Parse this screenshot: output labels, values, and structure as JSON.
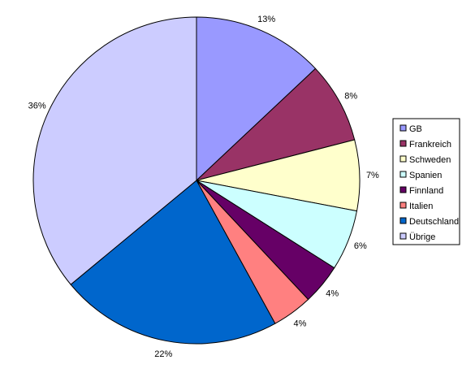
{
  "chart_data": {
    "type": "pie",
    "title": "",
    "start_angle_deg": 0,
    "direction": "clockwise",
    "legend_position": "right",
    "slices": [
      {
        "name": "GB",
        "value": 13,
        "label": "13%",
        "color": "#9999ff"
      },
      {
        "name": "Frankreich",
        "value": 8,
        "label": "8%",
        "color": "#993366"
      },
      {
        "name": "Schweden",
        "value": 7,
        "label": "7%",
        "color": "#ffffcc"
      },
      {
        "name": "Spanien",
        "value": 6,
        "label": "6%",
        "color": "#ccffff"
      },
      {
        "name": "Finnland",
        "value": 4,
        "label": "4%",
        "color": "#660066"
      },
      {
        "name": "Italien",
        "value": 4,
        "label": "4%",
        "color": "#ff8080"
      },
      {
        "name": "Deutschland",
        "value": 22,
        "label": "22%",
        "color": "#0066cc"
      },
      {
        "name": "Übrige",
        "value": 36,
        "label": "36%",
        "color": "#ccccff"
      }
    ]
  }
}
